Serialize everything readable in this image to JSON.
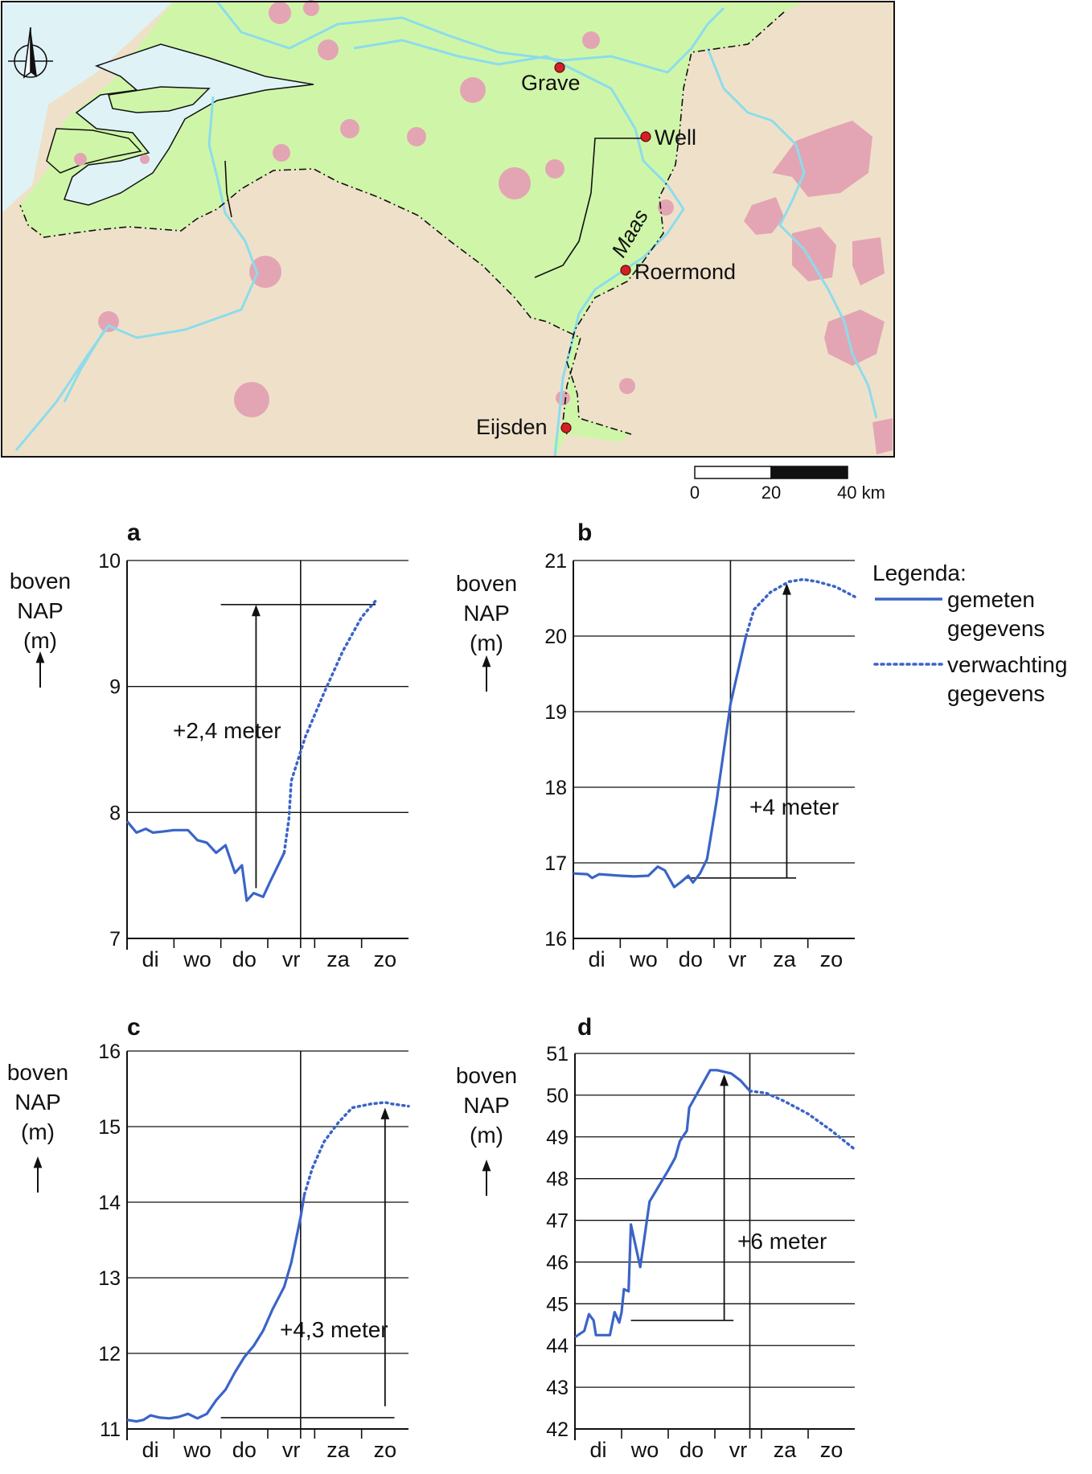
{
  "map": {
    "places": [
      "Grave",
      "Well",
      "Roermond",
      "Eijsden"
    ],
    "river_label": "Maas",
    "scale": {
      "labels": [
        "0",
        "20",
        "40 km"
      ]
    },
    "colors": {
      "land": "#efe1c9",
      "netherlands": "#cff6a8",
      "sea": "#dff3f7",
      "city": "#e3a5b3",
      "river": "#8cdcec",
      "place_marker": "#d51f26"
    }
  },
  "legend": {
    "title": "Legenda:",
    "measured": [
      "gemeten",
      "gegevens"
    ],
    "expected": [
      "verwachting",
      "gegevens"
    ]
  },
  "colors": {
    "line": "#3b64c8"
  },
  "chart_data": [
    {
      "panel": "a",
      "type": "line",
      "ylabel": [
        "boven",
        "NAP",
        "(m)"
      ],
      "ylim": [
        7,
        10
      ],
      "yticks": [
        7,
        8,
        9,
        10
      ],
      "x_categories": [
        "di",
        "wo",
        "do",
        "vr",
        "za",
        "zo"
      ],
      "x_range": [
        0,
        6
      ],
      "divider_x": 3.7,
      "measured": [
        [
          0,
          7.93
        ],
        [
          0.2,
          7.84
        ],
        [
          0.4,
          7.87
        ],
        [
          0.55,
          7.84
        ],
        [
          0.8,
          7.85
        ],
        [
          1.0,
          7.86
        ],
        [
          1.3,
          7.86
        ],
        [
          1.5,
          7.78
        ],
        [
          1.7,
          7.76
        ],
        [
          1.9,
          7.68
        ],
        [
          2.1,
          7.74
        ],
        [
          2.3,
          7.52
        ],
        [
          2.45,
          7.58
        ],
        [
          2.55,
          7.3
        ],
        [
          2.7,
          7.36
        ],
        [
          2.9,
          7.33
        ],
        [
          3.05,
          7.45
        ],
        [
          3.35,
          7.68
        ]
      ],
      "expected": [
        [
          3.35,
          7.68
        ],
        [
          3.45,
          7.95
        ],
        [
          3.5,
          8.25
        ],
        [
          3.8,
          8.6
        ],
        [
          4.2,
          8.95
        ],
        [
          4.6,
          9.28
        ],
        [
          5.0,
          9.55
        ],
        [
          5.3,
          9.68
        ]
      ],
      "annotation": {
        "text": "+2,4 meter",
        "arrow_x": 2.75,
        "from": 7.4,
        "to": 9.65
      },
      "reference_line": {
        "y": 9.65,
        "from_x": 2.0,
        "to_x": 5.3
      }
    },
    {
      "panel": "b",
      "type": "line",
      "ylabel": [
        "boven",
        "NAP",
        "(m)"
      ],
      "ylim": [
        16,
        21
      ],
      "yticks": [
        16,
        17,
        18,
        19,
        20,
        21
      ],
      "x_categories": [
        "di",
        "wo",
        "do",
        "vr",
        "za",
        "zo"
      ],
      "x_range": [
        0,
        6
      ],
      "divider_x": 3.35,
      "measured": [
        [
          0,
          16.86
        ],
        [
          0.3,
          16.85
        ],
        [
          0.4,
          16.8
        ],
        [
          0.55,
          16.85
        ],
        [
          1.0,
          16.83
        ],
        [
          1.3,
          16.82
        ],
        [
          1.6,
          16.83
        ],
        [
          1.8,
          16.95
        ],
        [
          1.95,
          16.9
        ],
        [
          2.15,
          16.68
        ],
        [
          2.3,
          16.75
        ],
        [
          2.45,
          16.83
        ],
        [
          2.55,
          16.74
        ],
        [
          2.7,
          16.86
        ],
        [
          2.85,
          17.05
        ],
        [
          3.05,
          17.8
        ],
        [
          3.35,
          19.1
        ],
        [
          3.68,
          20.0
        ]
      ],
      "expected": [
        [
          3.68,
          20.0
        ],
        [
          3.85,
          20.35
        ],
        [
          4.2,
          20.58
        ],
        [
          4.6,
          20.72
        ],
        [
          4.9,
          20.75
        ],
        [
          5.2,
          20.72
        ],
        [
          5.6,
          20.65
        ],
        [
          6.0,
          20.52
        ]
      ],
      "annotation": {
        "text": "+4 meter",
        "arrow_x": 4.55,
        "from": 16.8,
        "to": 20.7
      },
      "reference_line": {
        "y": 16.8,
        "from_x": 2.4,
        "to_x": 4.75
      }
    },
    {
      "panel": "c",
      "type": "line",
      "ylabel": [
        "boven",
        "NAP",
        "(m)"
      ],
      "ylim": [
        11,
        16
      ],
      "yticks": [
        11,
        12,
        13,
        14,
        15,
        16
      ],
      "x_categories": [
        "di",
        "wo",
        "do",
        "vr",
        "za",
        "zo"
      ],
      "x_range": [
        0,
        6
      ],
      "divider_x": 3.7,
      "measured": [
        [
          0,
          11.12
        ],
        [
          0.2,
          11.1
        ],
        [
          0.35,
          11.12
        ],
        [
          0.5,
          11.18
        ],
        [
          0.7,
          11.15
        ],
        [
          0.9,
          11.14
        ],
        [
          1.1,
          11.16
        ],
        [
          1.3,
          11.2
        ],
        [
          1.5,
          11.14
        ],
        [
          1.7,
          11.2
        ],
        [
          1.9,
          11.38
        ],
        [
          2.1,
          11.52
        ],
        [
          2.3,
          11.75
        ],
        [
          2.5,
          11.95
        ],
        [
          2.7,
          12.1
        ],
        [
          2.9,
          12.3
        ],
        [
          3.1,
          12.58
        ],
        [
          3.35,
          12.88
        ],
        [
          3.5,
          13.2
        ],
        [
          3.7,
          13.8
        ],
        [
          3.78,
          14.1
        ]
      ],
      "expected": [
        [
          3.78,
          14.1
        ],
        [
          3.95,
          14.45
        ],
        [
          4.2,
          14.8
        ],
        [
          4.5,
          15.05
        ],
        [
          4.8,
          15.25
        ],
        [
          5.2,
          15.3
        ],
        [
          5.5,
          15.32
        ],
        [
          5.65,
          15.3
        ],
        [
          6.0,
          15.27
        ]
      ],
      "annotation": {
        "text": "+4,3 meter",
        "arrow_x": 5.5,
        "from": 11.3,
        "to": 15.25
      },
      "reference_line": {
        "y": 11.15,
        "from_x": 2.0,
        "to_x": 5.7
      }
    },
    {
      "panel": "d",
      "type": "line",
      "ylabel": [
        "boven",
        "NAP",
        "(m)"
      ],
      "ylim": [
        42,
        51
      ],
      "yticks": [
        42,
        43,
        44,
        45,
        46,
        47,
        48,
        49,
        50,
        51
      ],
      "x_categories": [
        "di",
        "wo",
        "do",
        "vr",
        "za",
        "zo"
      ],
      "x_range": [
        0,
        6
      ],
      "divider_x": 3.75,
      "measured": [
        [
          0,
          44.2
        ],
        [
          0.2,
          44.35
        ],
        [
          0.3,
          44.75
        ],
        [
          0.4,
          44.6
        ],
        [
          0.45,
          44.25
        ],
        [
          0.6,
          44.25
        ],
        [
          0.75,
          44.25
        ],
        [
          0.85,
          44.8
        ],
        [
          0.95,
          44.55
        ],
        [
          1.0,
          44.8
        ],
        [
          1.05,
          45.35
        ],
        [
          1.15,
          45.3
        ],
        [
          1.2,
          46.9
        ],
        [
          1.4,
          45.88
        ],
        [
          1.6,
          47.45
        ],
        [
          2.0,
          48.2
        ],
        [
          2.15,
          48.5
        ],
        [
          2.25,
          48.9
        ],
        [
          2.4,
          49.15
        ],
        [
          2.45,
          49.7
        ],
        [
          2.55,
          49.9
        ],
        [
          2.75,
          50.3
        ],
        [
          2.9,
          50.6
        ],
        [
          3.05,
          50.6
        ],
        [
          3.35,
          50.52
        ],
        [
          3.55,
          50.35
        ],
        [
          3.75,
          50.1
        ]
      ],
      "expected": [
        [
          3.75,
          50.1
        ],
        [
          4.1,
          50.05
        ],
        [
          4.5,
          49.85
        ],
        [
          5.0,
          49.55
        ],
        [
          5.5,
          49.15
        ],
        [
          6.0,
          48.7
        ]
      ],
      "annotation": {
        "text": "+6 meter",
        "arrow_x": 3.2,
        "from": 44.6,
        "to": 50.5
      },
      "reference_line": {
        "y": 44.6,
        "from_x": 1.2,
        "to_x": 3.4
      }
    }
  ]
}
